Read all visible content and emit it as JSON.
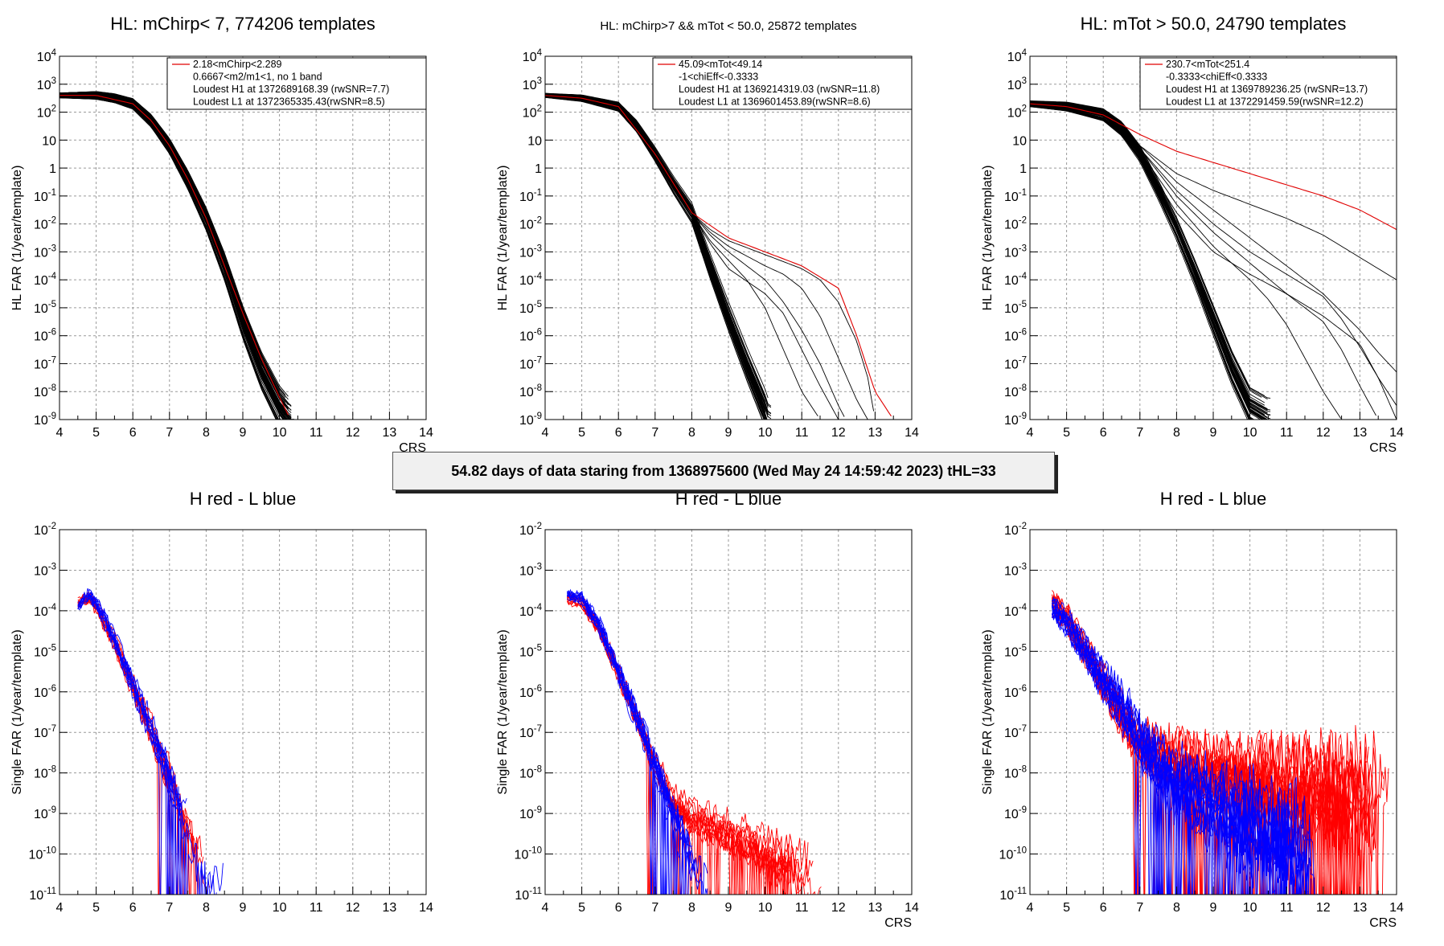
{
  "banner": "54.82 days of data staring from 1368975600 (Wed May 24 14:59:42 2023) tHL=33",
  "colors": {
    "hl_curve": "#000000",
    "highlight": "#e00000",
    "h_red": "#ff0000",
    "l_blue": "#0000ff",
    "grid": "#9a9a9a"
  },
  "chart_data": [
    {
      "type": "line",
      "title": "HL: mChirp< 7, 774206 templates",
      "xlabel": "CRS",
      "ylabel": "HL FAR (1/year/template)",
      "xlim": [
        4,
        14
      ],
      "ylim_log10": [
        -9,
        4
      ],
      "x_ticks": [
        "4",
        "5",
        "6",
        "7",
        "8",
        "9",
        "10",
        "11",
        "12",
        "13",
        "14"
      ],
      "y_ticks": [
        "10^{-9}",
        "10^{-8}",
        "10^{-7}",
        "10^{-6}",
        "10^{-5}",
        "10^{-4}",
        "10^{-3}",
        "10^{-2}",
        "10^{-1}",
        "1",
        "10",
        "10^{2}",
        "10^{3}",
        "10^{4}"
      ],
      "grid": true,
      "legend": {
        "position": "top-right",
        "lines": [
          "2.18<mChirp<2.289",
          "0.6667<m2/m1<1, no 1 band",
          "Loudest H1 at 1372689168.39 (rwSNR=7.7)",
          "Loudest L1 at 1372365335.43(rwSNR=8.5)"
        ]
      },
      "series": [
        {
          "x": [
            4,
            5,
            5.5,
            6,
            6.5,
            7,
            7.5,
            8,
            8.5,
            9,
            9.5,
            10,
            10.3
          ],
          "log10_y": [
            2.6,
            2.6,
            2.5,
            2.3,
            1.7,
            0.8,
            -0.4,
            -1.8,
            -3.5,
            -5.5,
            -7.2,
            -8.5,
            -9
          ],
          "count": 70,
          "spread": 0.3,
          "style": "band"
        },
        {
          "x": [
            4,
            5,
            6,
            6.5,
            7,
            7.5,
            8,
            8.5,
            9,
            9.5,
            10,
            10.3
          ],
          "log10_y": [
            2.6,
            2.6,
            2.3,
            1.7,
            0.8,
            -0.4,
            -1.8,
            -3.5,
            -5.2,
            -6.8,
            -8.2,
            -9
          ],
          "highlight": true
        }
      ]
    },
    {
      "type": "line",
      "title": "HL: mChirp>7 && mTot < 50.0, 25872 templates",
      "xlabel": "",
      "ylabel": "HL FAR (1/year/template)",
      "xlim": [
        4,
        14
      ],
      "ylim_log10": [
        -9,
        4
      ],
      "x_ticks": [
        "4",
        "5",
        "6",
        "7",
        "8",
        "9",
        "10",
        "11",
        "12",
        "13",
        "14"
      ],
      "y_ticks": [
        "10^{-9}",
        "10^{-8}",
        "10^{-7}",
        "10^{-6}",
        "10^{-5}",
        "10^{-4}",
        "10^{-3}",
        "10^{-2}",
        "10^{-1}",
        "1",
        "10",
        "10^{2}",
        "10^{3}",
        "10^{4}"
      ],
      "grid": true,
      "legend": {
        "position": "top-right",
        "lines": [
          "45.09<mTot<49.14",
          "-1<chiEff<-0.3333",
          "Loudest H1 at 1369214319.03 (rwSNR=11.8)",
          "Loudest L1 at 1369601453.89(rwSNR=8.6)"
        ]
      },
      "series": [
        {
          "x": [
            4,
            5,
            6,
            6.5,
            7,
            7.5,
            8,
            8.5,
            9,
            9.5,
            10,
            10.1
          ],
          "log10_y": [
            2.6,
            2.5,
            2.2,
            1.5,
            0.5,
            -0.6,
            -1.6,
            -3.5,
            -5.3,
            -7,
            -8.6,
            -9
          ],
          "count": 40,
          "spread": 0.25,
          "style": "band"
        },
        {
          "x": [
            4,
            5,
            6,
            7,
            8,
            8.5,
            9,
            9.5,
            10,
            10.5,
            11,
            11.5
          ],
          "log10_y": [
            2.6,
            2.5,
            2.2,
            0.5,
            -1.6,
            -2.6,
            -3.3,
            -4,
            -5,
            -6.5,
            -8,
            -9
          ],
          "style": "line"
        },
        {
          "x": [
            4,
            5,
            6,
            7,
            8,
            8.5,
            9,
            9.5,
            10,
            10.5,
            11,
            11.5,
            12,
            12.2
          ],
          "log10_y": [
            2.6,
            2.5,
            2.2,
            0.5,
            -1.6,
            -2.4,
            -3,
            -3.5,
            -4,
            -4.8,
            -5.8,
            -7,
            -8.5,
            -9
          ],
          "style": "line"
        },
        {
          "x": [
            4,
            5,
            6,
            7,
            8,
            8.5,
            9,
            10,
            10.5,
            11,
            11.5,
            12,
            12.5,
            12.8
          ],
          "log10_y": [
            2.6,
            2.5,
            2.2,
            0.5,
            -1.6,
            -2.3,
            -2.8,
            -3.5,
            -3.8,
            -4.3,
            -5.3,
            -6.8,
            -8.3,
            -9
          ],
          "style": "line"
        },
        {
          "x": [
            4,
            5,
            6,
            7,
            8,
            8.5,
            9,
            10,
            11,
            11.5,
            12,
            12.5,
            12.8,
            13
          ],
          "log10_y": [
            2.6,
            2.5,
            2.2,
            0.5,
            -1.6,
            -2.2,
            -2.6,
            -3.1,
            -3.6,
            -4,
            -4.8,
            -6.2,
            -7.5,
            -9
          ],
          "style": "line"
        },
        {
          "x": [
            4,
            5,
            6,
            7,
            8,
            8.5,
            9,
            10,
            10.5,
            11,
            11.5,
            12
          ],
          "log10_y": [
            2.6,
            2.5,
            2.2,
            0.5,
            -1.6,
            -2.7,
            -3.6,
            -4.5,
            -5.2,
            -6.5,
            -7.8,
            -9
          ],
          "style": "line"
        },
        {
          "x": [
            4,
            5,
            6,
            7,
            8,
            9,
            10,
            11,
            11.5,
            12,
            12.5,
            13,
            13.5
          ],
          "log10_y": [
            2.6,
            2.5,
            2.2,
            0.5,
            -1.6,
            -2.5,
            -3,
            -3.5,
            -3.9,
            -4.3,
            -6,
            -8,
            -9
          ],
          "highlight": true
        }
      ]
    },
    {
      "type": "line",
      "title": "HL: mTot > 50.0, 24790 templates",
      "xlabel": "CRS",
      "ylabel": "HL FAR (1/year/template)",
      "xlim": [
        4,
        14
      ],
      "ylim_log10": [
        -9,
        4
      ],
      "x_ticks": [
        "4",
        "5",
        "6",
        "7",
        "8",
        "9",
        "10",
        "11",
        "12",
        "13",
        "14"
      ],
      "y_ticks": [
        "10^{-9}",
        "10^{-8}",
        "10^{-7}",
        "10^{-6}",
        "10^{-5}",
        "10^{-4}",
        "10^{-3}",
        "10^{-2}",
        "10^{-1}",
        "1",
        "10",
        "10^{2}",
        "10^{3}",
        "10^{4}"
      ],
      "grid": true,
      "legend": {
        "position": "top-right",
        "lines": [
          "230.7<mTot<251.4",
          "-0.3333<chiEff<0.3333",
          "Loudest H1 at 1369789236.25 (rwSNR=13.7)",
          "Loudest L1 at 1372291459.59(rwSNR=12.2)"
        ]
      },
      "series": [
        {
          "x": [
            4,
            5,
            6,
            6.5,
            7,
            7.5,
            8,
            8.5,
            9,
            9.5,
            10,
            10.5
          ],
          "log10_y": [
            2.3,
            2.2,
            1.9,
            1.4,
            0.5,
            -0.8,
            -2.2,
            -3.8,
            -5.5,
            -7.2,
            -8.6,
            -9
          ],
          "count": 40,
          "spread": 0.35,
          "style": "band"
        },
        {
          "x": [
            4,
            5,
            6,
            7,
            8,
            9,
            10,
            11,
            12,
            13,
            13.5,
            14
          ],
          "log10_y": [
            2.3,
            2.2,
            1.9,
            0.8,
            -0.5,
            -1.5,
            -2.5,
            -3.5,
            -4.5,
            -5.8,
            -6.6,
            -7.3
          ],
          "style": "line"
        },
        {
          "x": [
            4,
            5,
            6,
            7,
            8,
            9,
            10,
            11,
            12,
            12.5,
            13,
            13.5,
            14
          ],
          "log10_y": [
            2.3,
            2.2,
            1.9,
            0.7,
            -0.8,
            -2,
            -3,
            -3.8,
            -4.6,
            -5.4,
            -6.4,
            -7.5,
            -8.5
          ],
          "style": "line"
        },
        {
          "x": [
            4,
            5,
            6,
            7,
            8,
            9,
            10,
            10.5,
            11,
            11.5,
            12,
            12.5
          ],
          "log10_y": [
            2.3,
            2.2,
            1.9,
            0.6,
            -1.3,
            -2.8,
            -4,
            -4.7,
            -5.6,
            -6.8,
            -8,
            -9
          ],
          "style": "line"
        },
        {
          "x": [
            4,
            5,
            6,
            7,
            8,
            9,
            10,
            11,
            12,
            13,
            14
          ],
          "log10_y": [
            2.3,
            2.2,
            1.9,
            0.8,
            -0.2,
            -0.8,
            -1.3,
            -1.8,
            -2.4,
            -3.2,
            -4
          ],
          "style": "line"
        },
        {
          "x": [
            4,
            5,
            6,
            7,
            8,
            9,
            10,
            11,
            12,
            13,
            13.5,
            14
          ],
          "log10_y": [
            2.3,
            2.2,
            1.9,
            0.5,
            -1.6,
            -3,
            -3.8,
            -4.5,
            -5.3,
            -6.3,
            -7.5,
            -9
          ],
          "style": "line"
        },
        {
          "x": [
            4,
            5,
            6,
            7,
            8,
            9,
            10,
            11,
            12,
            12.5,
            13,
            13.5
          ],
          "log10_y": [
            2.3,
            2.2,
            1.9,
            0.7,
            -1,
            -2.3,
            -3.4,
            -4.5,
            -5.5,
            -6.5,
            -7.8,
            -9
          ],
          "style": "line"
        },
        {
          "x": [
            4,
            5,
            6,
            7,
            8,
            9,
            10,
            11,
            12,
            13,
            14
          ],
          "log10_y": [
            2.3,
            2.2,
            1.9,
            1.2,
            0.6,
            0.2,
            -0.2,
            -0.6,
            -1,
            -1.5,
            -2.2
          ],
          "highlight": true
        }
      ]
    },
    {
      "type": "line",
      "title": "H red - L blue",
      "xlabel": "",
      "ylabel": "Single FAR (1/year/template)",
      "xlim": [
        4,
        14
      ],
      "ylim_log10": [
        -11,
        -2
      ],
      "x_ticks": [
        "4",
        "5",
        "6",
        "7",
        "8",
        "9",
        "10",
        "11",
        "12",
        "13",
        "14"
      ],
      "y_ticks": [
        "10^{-11}",
        "10^{-10}",
        "10^{-9}",
        "10^{-8}",
        "10^{-7}",
        "10^{-6}",
        "10^{-5}",
        "10^{-4}",
        "10^{-3}",
        "10^{-2}"
      ],
      "grid": true,
      "series": [
        {
          "name": "H",
          "x": [
            4.5,
            4.8,
            5,
            5.5,
            6,
            6.5,
            7,
            7.5,
            8
          ],
          "log10_y": [
            -3.8,
            -3.7,
            -3.9,
            -4.8,
            -5.9,
            -7,
            -8.2,
            -9.5,
            -10.5
          ],
          "count": 10,
          "spread": 0.25,
          "noise": 0.5,
          "cutoff": 8.2,
          "color": "h_red"
        },
        {
          "name": "L",
          "x": [
            4.5,
            4.8,
            5,
            5.5,
            6,
            6.5,
            7,
            7.5,
            8
          ],
          "log10_y": [
            -3.9,
            -3.6,
            -3.8,
            -4.7,
            -5.8,
            -6.9,
            -8.1,
            -9.4,
            -10.4
          ],
          "count": 10,
          "spread": 0.25,
          "noise": 0.5,
          "cutoff": 8.5,
          "color": "l_blue"
        }
      ]
    },
    {
      "type": "line",
      "title": "H red - L blue",
      "xlabel": "CRS",
      "ylabel": "Single FAR (1/year/template)",
      "xlim": [
        4,
        14
      ],
      "ylim_log10": [
        -11,
        -2
      ],
      "x_ticks": [
        "4",
        "5",
        "6",
        "7",
        "8",
        "9",
        "10",
        "11",
        "12",
        "13",
        "14"
      ],
      "y_ticks": [
        "10^{-11}",
        "10^{-10}",
        "10^{-9}",
        "10^{-8}",
        "10^{-7}",
        "10^{-6}",
        "10^{-5}",
        "10^{-4}",
        "10^{-3}",
        "10^{-2}"
      ],
      "grid": true,
      "series": [
        {
          "name": "H",
          "x": [
            4.6,
            5,
            5.5,
            6,
            6.5,
            7,
            7.5,
            8,
            9,
            10,
            11,
            11.7
          ],
          "log10_y": [
            -3.7,
            -3.8,
            -4.5,
            -5.6,
            -6.7,
            -7.9,
            -8.8,
            -9.2,
            -9.6,
            -10.1,
            -10.6,
            -11
          ],
          "count": 12,
          "spread": 0.3,
          "noise": 0.5,
          "cutoff": 11.7,
          "color": "h_red"
        },
        {
          "name": "L",
          "x": [
            4.6,
            5,
            5.5,
            6,
            6.5,
            7,
            7.5,
            8,
            8.5
          ],
          "log10_y": [
            -3.6,
            -3.7,
            -4.4,
            -5.5,
            -6.6,
            -7.8,
            -9,
            -10.2,
            -11
          ],
          "count": 12,
          "spread": 0.25,
          "noise": 0.5,
          "cutoff": 8.5,
          "color": "l_blue"
        }
      ]
    },
    {
      "type": "line",
      "title": "H red - L blue",
      "xlabel": "CRS",
      "ylabel": "Single FAR (1/year/template)",
      "xlim": [
        4,
        14
      ],
      "ylim_log10": [
        -11,
        -2
      ],
      "x_ticks": [
        "4",
        "5",
        "6",
        "7",
        "8",
        "9",
        "10",
        "11",
        "12",
        "13",
        "14"
      ],
      "y_ticks": [
        "10^{-11}",
        "10^{-10}",
        "10^{-9}",
        "10^{-8}",
        "10^{-7}",
        "10^{-6}",
        "10^{-5}",
        "10^{-4}",
        "10^{-3}",
        "10^{-2}"
      ],
      "grid": true,
      "series": [
        {
          "name": "H",
          "x": [
            4.6,
            5,
            5.5,
            6,
            6.5,
            7,
            7.5,
            8,
            9,
            10,
            11,
            12,
            13,
            14
          ],
          "log10_y": [
            -3.8,
            -4.2,
            -5,
            -5.8,
            -6.6,
            -7.3,
            -7.6,
            -7.8,
            -8,
            -8.2,
            -8.4,
            -8.5,
            -8.6,
            -8.7
          ],
          "count": 16,
          "spread": 0.6,
          "noise": 1.2,
          "cutoff": 14,
          "color": "h_red"
        },
        {
          "name": "L",
          "x": [
            4.6,
            5,
            5.5,
            6,
            6.5,
            7,
            7.5,
            8,
            9,
            10,
            11,
            12
          ],
          "log10_y": [
            -3.9,
            -4.3,
            -5,
            -5.7,
            -6.4,
            -7.2,
            -7.8,
            -8.3,
            -8.8,
            -9.3,
            -9.8,
            -10.3
          ],
          "count": 14,
          "spread": 0.6,
          "noise": 1.2,
          "cutoff": 12,
          "color": "l_blue"
        }
      ]
    }
  ]
}
